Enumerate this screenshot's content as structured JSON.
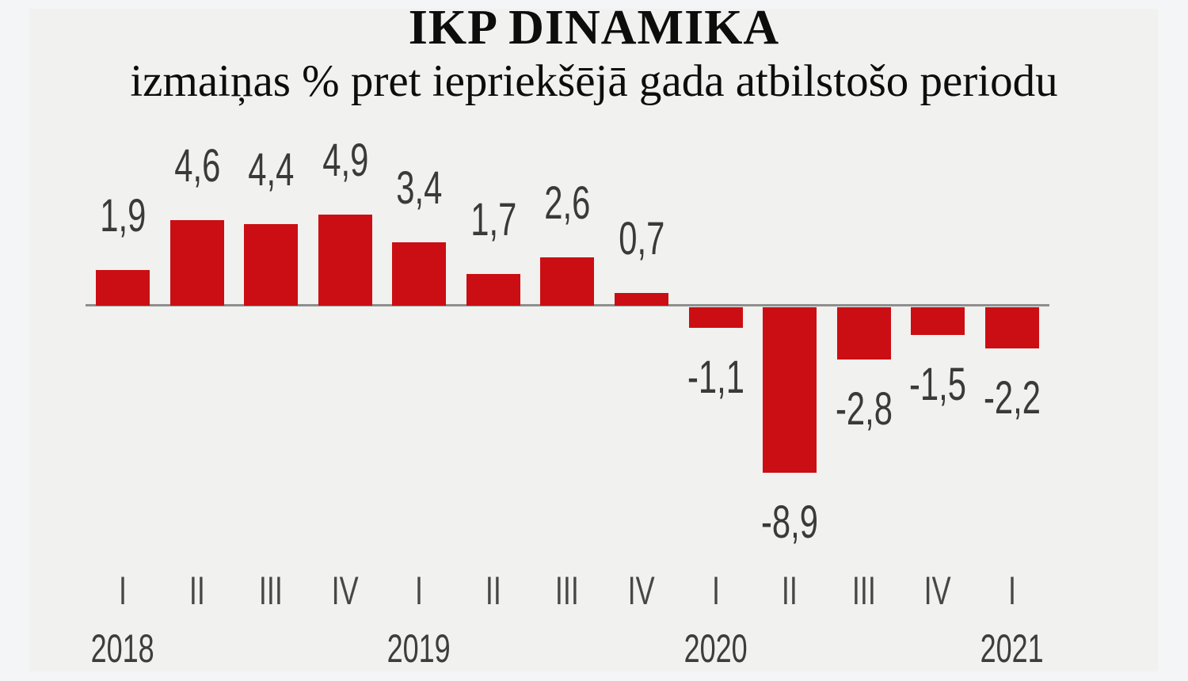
{
  "page": {
    "background": "#f4f5f7",
    "panel_background": "#f1f1ef"
  },
  "chart_data": {
    "type": "bar",
    "title": "IKP DINAMIKA",
    "subtitle": "izmaiņas % pret iepriekšējā gada atbilstošo periodu",
    "title_color": "#0d0d0d",
    "bar_color": "#cb0e13",
    "axis_color": "#8f8f8f",
    "value_label_color": "#3a3a3a",
    "tick_label_color": "#474747",
    "year_label_color": "#3d3d3d",
    "xlabel": "",
    "ylabel": "",
    "ylim": [
      -10,
      6
    ],
    "grid": false,
    "legend": false,
    "decimal_separator": ",",
    "categories": [
      "I",
      "II",
      "III",
      "IV",
      "I",
      "II",
      "III",
      "IV",
      "I",
      "II",
      "III",
      "IV",
      "I"
    ],
    "points": [
      {
        "quarter": "I",
        "year": "2018",
        "value": 1.9,
        "label": "1,9"
      },
      {
        "quarter": "II",
        "year": "2018",
        "value": 4.6,
        "label": "4,6"
      },
      {
        "quarter": "III",
        "year": "2018",
        "value": 4.4,
        "label": "4,4"
      },
      {
        "quarter": "IV",
        "year": "2018",
        "value": 4.9,
        "label": "4,9"
      },
      {
        "quarter": "I",
        "year": "2019",
        "value": 3.4,
        "label": "3,4"
      },
      {
        "quarter": "II",
        "year": "2019",
        "value": 1.7,
        "label": "1,7"
      },
      {
        "quarter": "III",
        "year": "2019",
        "value": 2.6,
        "label": "2,6"
      },
      {
        "quarter": "IV",
        "year": "2019",
        "value": 0.7,
        "label": "0,7"
      },
      {
        "quarter": "I",
        "year": "2020",
        "value": -1.1,
        "label": "-1,1"
      },
      {
        "quarter": "II",
        "year": "2020",
        "value": -8.9,
        "label": "-8,9"
      },
      {
        "quarter": "III",
        "year": "2020",
        "value": -2.8,
        "label": "-2,8"
      },
      {
        "quarter": "IV",
        "year": "2020",
        "value": -1.5,
        "label": "-1,5"
      },
      {
        "quarter": "I",
        "year": "2021",
        "value": -2.2,
        "label": "-2,2"
      }
    ],
    "year_axis_labels": [
      {
        "label": "2018",
        "bar_index": 0
      },
      {
        "label": "2019",
        "bar_index": 4
      },
      {
        "label": "2020",
        "bar_index": 8
      },
      {
        "label": "2021",
        "bar_index": 12
      }
    ]
  }
}
